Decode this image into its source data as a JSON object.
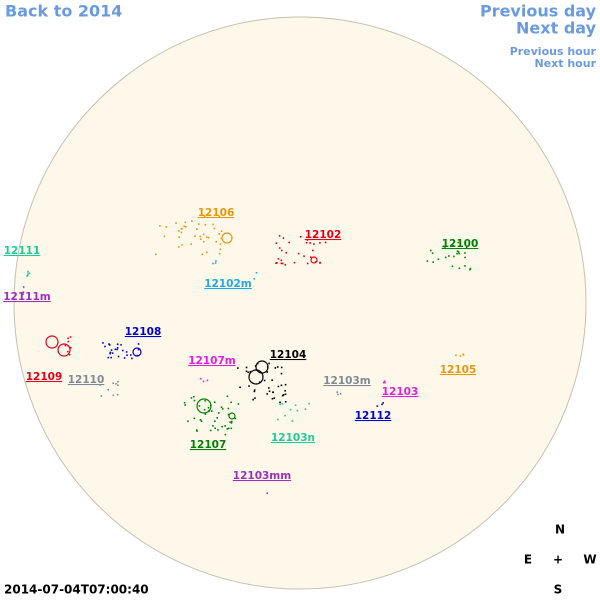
{
  "nav": {
    "back": "Back to 2014",
    "previous_day": "Previous day",
    "next_day": "Next day",
    "previous_hour": "Previous hour",
    "next_hour": "Next hour"
  },
  "regions": [
    {
      "label": "12106",
      "color": "#e8960e"
    },
    {
      "label": "12102",
      "color": "#e0001a"
    },
    {
      "label": "12100",
      "color": "#008000"
    },
    {
      "label": "12111",
      "color": "#20c997"
    },
    {
      "label": "12111m",
      "color": "#9b30c0"
    },
    {
      "label": "12102m",
      "color": "#1fa9e0"
    },
    {
      "label": "12108",
      "color": "#0000d0"
    },
    {
      "label": "12107m",
      "color": "#e020e0"
    },
    {
      "label": "12104",
      "color": "#000000"
    },
    {
      "label": "12109",
      "color": "#e0001a"
    },
    {
      "label": "12110",
      "color": "#808a96"
    },
    {
      "label": "12103m",
      "color": "#808a96"
    },
    {
      "label": "12105",
      "color": "#e8960e"
    },
    {
      "label": "12103",
      "color": "#e020e0"
    },
    {
      "label": "12112",
      "color": "#0000d0"
    },
    {
      "label": "12103n",
      "color": "#20c997"
    },
    {
      "label": "12107",
      "color": "#008000"
    },
    {
      "label": "12103mm",
      "color": "#9b30c0"
    }
  ],
  "compass": {
    "north": "N",
    "east": "E",
    "center": "+",
    "west": "W",
    "south": "S"
  },
  "timestamp": "2014-07-04T07:00:40"
}
